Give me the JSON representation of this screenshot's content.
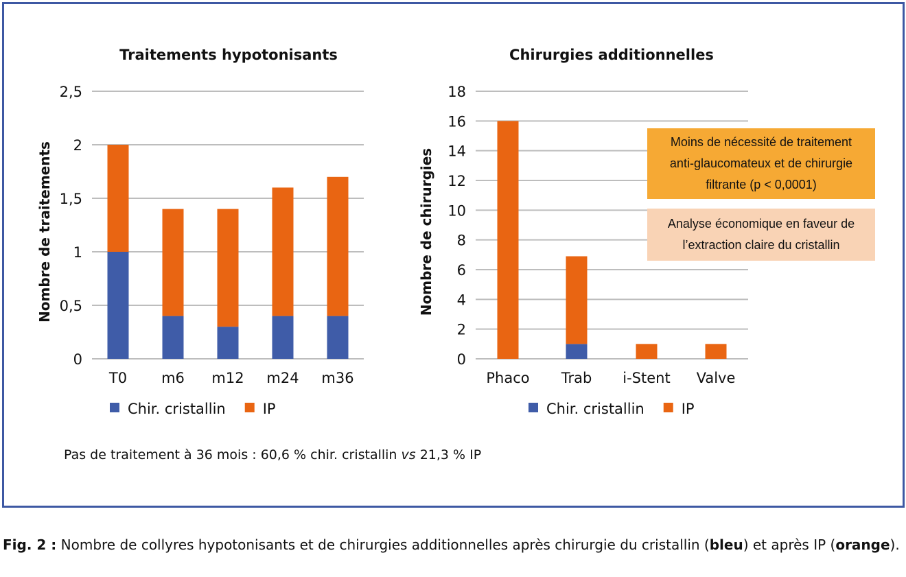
{
  "chart_data": [
    {
      "type": "bar",
      "stacked": true,
      "title": "Traitements hypotonisants",
      "xlabel": "",
      "ylabel": "Nombre de traitements",
      "ylim": [
        0,
        2.5
      ],
      "yticks": [
        "0",
        "0,5",
        "1",
        "1,5",
        "2",
        "2,5"
      ],
      "grid": true,
      "legend": "bottom",
      "categories": [
        "T0",
        "m6",
        "m12",
        "m24",
        "m36"
      ],
      "series": [
        {
          "name": "Chir. cristallin",
          "color": "#3f5ca8",
          "values": [
            1.0,
            0.4,
            0.3,
            0.4,
            0.4
          ]
        },
        {
          "name": "IP",
          "color": "#e96512",
          "values": [
            1.0,
            1.0,
            1.1,
            1.2,
            1.3
          ]
        }
      ]
    },
    {
      "type": "bar",
      "stacked": true,
      "title": "Chirurgies additionnelles",
      "xlabel": "",
      "ylabel": "Nombre de chirurgies",
      "ylim": [
        0,
        18
      ],
      "yticks": [
        "0",
        "2",
        "4",
        "6",
        "8",
        "10",
        "12",
        "14",
        "16",
        "18"
      ],
      "grid": true,
      "legend": "bottom",
      "categories": [
        "Phaco",
        "Trab",
        "i-Stent",
        "Valve"
      ],
      "series": [
        {
          "name": "Chir. cristallin",
          "color": "#3f5ca8",
          "values": [
            0,
            1,
            0,
            0
          ]
        },
        {
          "name": "IP",
          "color": "#e96512",
          "values": [
            16,
            5.9,
            1,
            1
          ]
        }
      ],
      "annotations": [
        {
          "text": "Moins de nécessité de traitement\nanti-glaucomateux et de chirurgie\nfiltrante (p < 0,0001)",
          "color": "#f6a934"
        },
        {
          "text": "Analyse économique en faveur de\nl’extraction claire du cristallin",
          "color": "#f9d3b5"
        }
      ]
    }
  ],
  "note": {
    "before": "Pas de traitement à 36 mois : 60,6 % chir. cristallin ",
    "vs": "vs",
    "after": " 21,3 % IP"
  },
  "caption": {
    "label": "Fig. 2 :",
    "text1": " Nombre de collyres hypotonisants et de chirurgies additionnelles après chirurgie du cristallin (",
    "bleu": "bleu",
    "text2": ") et après IP (",
    "orange": "orange",
    "text3": ")."
  },
  "colors": {
    "frame": "#3d58a3",
    "grid": "#bdbdbd"
  }
}
